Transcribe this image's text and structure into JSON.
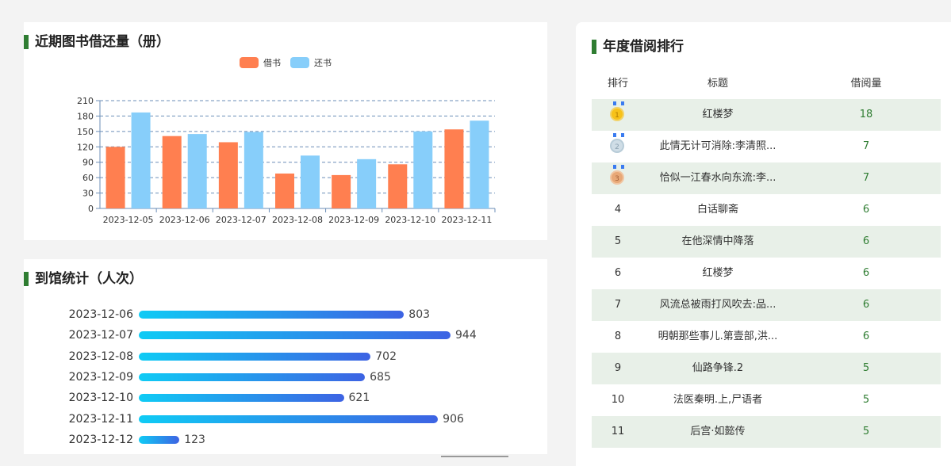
{
  "borrow_panel": {
    "title": "近期图书借还量（册）"
  },
  "visit_panel": {
    "title": "到馆统计（人次）",
    "rows": [
      {
        "date": "2023-12-06",
        "value": 803
      },
      {
        "date": "2023-12-07",
        "value": 944
      },
      {
        "date": "2023-12-08",
        "value": 702
      },
      {
        "date": "2023-12-09",
        "value": 685
      },
      {
        "date": "2023-12-10",
        "value": 621
      },
      {
        "date": "2023-12-11",
        "value": 906
      },
      {
        "date": "2023-12-12",
        "value": 123
      }
    ]
  },
  "rank_panel": {
    "title": "年度借阅排行",
    "headers": {
      "rank": "排行",
      "title": "标题",
      "count": "借阅量"
    },
    "rows": [
      {
        "rank": "1",
        "medal": "gold",
        "title": "红楼梦",
        "count": "18"
      },
      {
        "rank": "2",
        "medal": "silver",
        "title": "此情无计可消除:李清照...",
        "count": "7"
      },
      {
        "rank": "3",
        "medal": "bronze",
        "title": "恰似一江春水向东流:李...",
        "count": "7"
      },
      {
        "rank": "4",
        "medal": "",
        "title": "白话聊斋",
        "count": "6"
      },
      {
        "rank": "5",
        "medal": "",
        "title": "在他深情中降落",
        "count": "6"
      },
      {
        "rank": "6",
        "medal": "",
        "title": "红楼梦",
        "count": "6"
      },
      {
        "rank": "7",
        "medal": "",
        "title": "风流总被雨打风吹去:品...",
        "count": "6"
      },
      {
        "rank": "8",
        "medal": "",
        "title": "明朝那些事儿.第壹部,洪...",
        "count": "6"
      },
      {
        "rank": "9",
        "medal": "",
        "title": "仙路争锋.2",
        "count": "5"
      },
      {
        "rank": "10",
        "medal": "",
        "title": "法医秦明.上,尸语者",
        "count": "5"
      },
      {
        "rank": "11",
        "medal": "",
        "title": "后宫·如懿传",
        "count": "5"
      }
    ]
  },
  "chart_data": [
    {
      "type": "bar",
      "categories": [
        "2023-12-05",
        "2023-12-06",
        "2023-12-07",
        "2023-12-08",
        "2023-12-09",
        "2023-12-10",
        "2023-12-11"
      ],
      "series": [
        {
          "name": "借书",
          "color": "#ff7f50",
          "values": [
            120,
            141,
            129,
            68,
            65,
            86,
            154
          ]
        },
        {
          "name": "还书",
          "color": "#87cefa",
          "values": [
            187,
            145,
            149,
            103,
            96,
            150,
            171
          ]
        }
      ],
      "ylim": [
        0,
        210
      ],
      "yticks": [
        0,
        30,
        60,
        90,
        120,
        150,
        180,
        210
      ],
      "legend": "top-center",
      "grid": true
    },
    {
      "type": "bar",
      "orientation": "horizontal",
      "categories": [
        "2023-12-06",
        "2023-12-07",
        "2023-12-08",
        "2023-12-09",
        "2023-12-10",
        "2023-12-11",
        "2023-12-12"
      ],
      "values": [
        803,
        944,
        702,
        685,
        621,
        906,
        123
      ]
    }
  ]
}
